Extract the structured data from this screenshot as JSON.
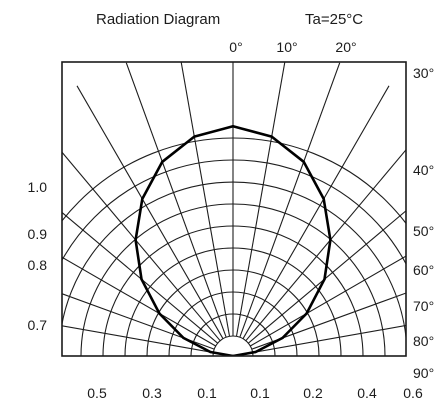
{
  "chart_data": {
    "type": "polar",
    "title": "Radiation Diagram",
    "condition": "Ta=25°C",
    "angle_labels_top": [
      "0°",
      "10°",
      "20°"
    ],
    "angle_labels_right": [
      "30°",
      "40°",
      "50°",
      "60°",
      "70°",
      "80°",
      "90°"
    ],
    "radial_labels_left": [
      "1.0",
      "0.9",
      "0.8",
      "0.7"
    ],
    "bottom_labels": [
      "0.5",
      "0.3",
      "0.1",
      "0.1",
      "0.2",
      "0.4",
      "0.6"
    ],
    "angles_deg": [
      0,
      10,
      20,
      30,
      40,
      50,
      60,
      70,
      80,
      90
    ],
    "relative_intensity": [
      1.0,
      0.97,
      0.9,
      0.79,
      0.66,
      0.52,
      0.37,
      0.23,
      0.1,
      0.0
    ],
    "grid": true
  }
}
